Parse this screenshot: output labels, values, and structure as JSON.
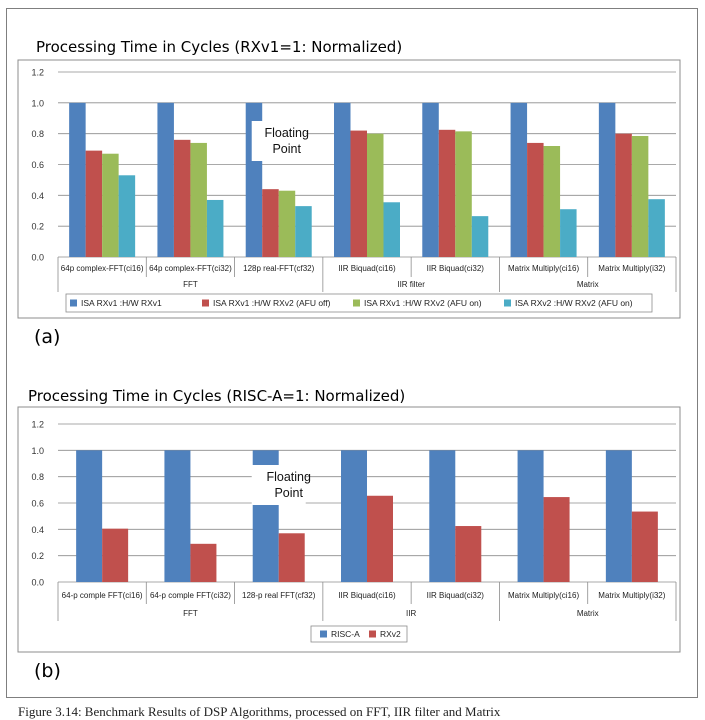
{
  "figure": {
    "panel_a_label": "(a)",
    "panel_b_label": "(b)",
    "caption": "Figure 3.14: Benchmark Results of DSP Algorithms, processed on FFT, IIR filter and Matrix"
  },
  "chart_data": [
    {
      "type": "bar",
      "title": "Processing Time in Cycles  (RXv1=1: Normalized)",
      "ylim": [
        0,
        1.2
      ],
      "yticks": [
        "0.0",
        "0.2",
        "0.4",
        "0.6",
        "0.8",
        "1.0",
        "1.2"
      ],
      "grid": true,
      "legend_position": "bottom",
      "categories": [
        "64p complex-FFT(ci16)",
        "64p complex-FFT(ci32)",
        "128p real-FFT(cf32)",
        "IIR Biquad(ci16)",
        "IIR Biquad(ci32)",
        "Matrix Multiply(ci16)",
        "Matrix Multiply(i32)"
      ],
      "groups": [
        {
          "label": "FFT",
          "count": 3
        },
        {
          "label": "IIR filter",
          "count": 2
        },
        {
          "label": "Matrix",
          "count": 2
        }
      ],
      "annotation": "Floating Point",
      "annotation_category": 2,
      "series": [
        {
          "name": "ISA RXv1 :H/W RXv1",
          "color": "#4f81bd",
          "values": [
            1.0,
            1.0,
            1.0,
            1.0,
            1.0,
            1.0,
            1.0
          ]
        },
        {
          "name": "ISA RXv1 :H/W RXv2 (AFU off)",
          "color": "#c0504d",
          "values": [
            0.69,
            0.76,
            0.44,
            0.82,
            0.825,
            0.74,
            0.8
          ]
        },
        {
          "name": "ISA RXv1 :H/W RXv2 (AFU on)",
          "color": "#9bbb59",
          "values": [
            0.67,
            0.74,
            0.43,
            0.8,
            0.815,
            0.72,
            0.785
          ]
        },
        {
          "name": "ISA RXv2 :H/W RXv2 (AFU on)",
          "color": "#4bacc6",
          "values": [
            0.53,
            0.37,
            0.33,
            0.355,
            0.265,
            0.31,
            0.375
          ]
        }
      ]
    },
    {
      "type": "bar",
      "title": "Processing Time in Cycles  (RISC-A=1: Normalized)",
      "ylim": [
        0,
        1.2
      ],
      "yticks": [
        "0.0",
        "0.2",
        "0.4",
        "0.6",
        "0.8",
        "1.0",
        "1.2"
      ],
      "grid": true,
      "legend_position": "bottom",
      "categories": [
        "64-p comple FFT(ci16)",
        "64-p comple FFT(ci32)",
        "128-p real FFT(cf32)",
        "IIR Biquad(ci16)",
        "IIR Biquad(ci32)",
        "Matrix Multiply(ci16)",
        "Matrix Multiply(i32)"
      ],
      "groups": [
        {
          "label": "FFT",
          "count": 3
        },
        {
          "label": "IIR",
          "count": 2
        },
        {
          "label": "Matrix",
          "count": 2
        }
      ],
      "annotation": "Floating Point",
      "annotation_category": 2,
      "series": [
        {
          "name": "RISC-A",
          "color": "#4f81bd",
          "values": [
            1.0,
            1.0,
            1.0,
            1.0,
            1.0,
            1.0,
            1.0
          ]
        },
        {
          "name": "RXv2",
          "color": "#c0504d",
          "values": [
            0.405,
            0.29,
            0.37,
            0.655,
            0.425,
            0.645,
            0.535
          ]
        }
      ]
    }
  ]
}
